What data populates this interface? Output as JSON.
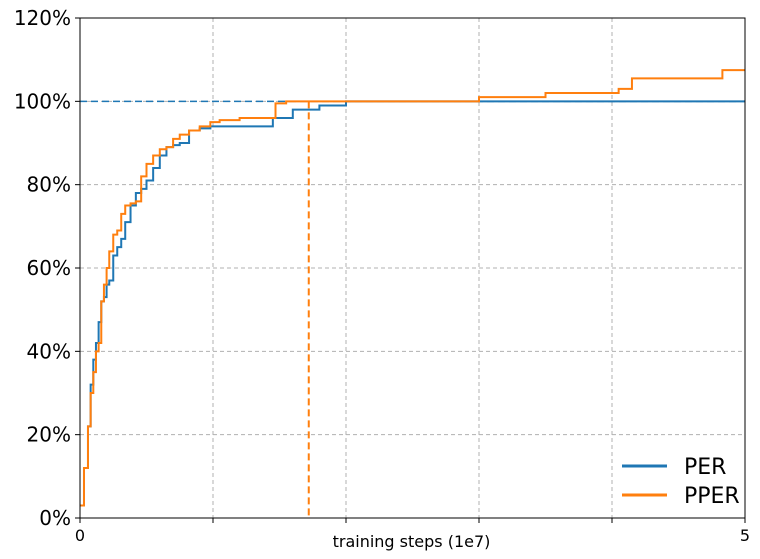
{
  "chart_data": {
    "type": "line",
    "xlabel": "training steps (1e7)",
    "x_tick_labels": [
      "0",
      "",
      "",
      "",
      "",
      "5"
    ],
    "x_ticks": [
      0,
      1,
      2,
      3,
      4,
      5
    ],
    "xlim": [
      0,
      5
    ],
    "y_tick_labels": [
      "0%",
      "20%",
      "40%",
      "60%",
      "80%",
      "100%",
      "120%"
    ],
    "y_ticks": [
      0,
      20,
      40,
      60,
      80,
      100,
      120
    ],
    "ylim": [
      0,
      120
    ],
    "grid": true,
    "legend_position": "bottom-right",
    "reference_line": {
      "y": 100,
      "color": "#1f77b4",
      "style": "dashed"
    },
    "vertical_marker": {
      "x": 1.72,
      "y_top": 100,
      "color": "#ff7f0e",
      "style": "dashed"
    },
    "series": [
      {
        "name": "PER",
        "color": "#1f77b4",
        "x": [
          0,
          0.03,
          0.06,
          0.08,
          0.1,
          0.12,
          0.14,
          0.16,
          0.18,
          0.2,
          0.22,
          0.25,
          0.28,
          0.31,
          0.34,
          0.38,
          0.42,
          0.46,
          0.5,
          0.55,
          0.6,
          0.65,
          0.7,
          0.75,
          0.82,
          0.9,
          0.98,
          1.02,
          1.06,
          1.2,
          1.3,
          1.45,
          1.6,
          1.7,
          1.8,
          1.9,
          2.0,
          2.5,
          3.0,
          3.5,
          4.0,
          4.5,
          5.0
        ],
        "y": [
          3,
          12,
          22,
          32,
          38,
          42,
          47,
          52,
          53,
          56,
          57,
          63,
          65,
          67,
          71,
          75,
          78,
          79,
          81,
          84,
          87,
          89,
          89.5,
          90,
          93,
          93.5,
          94,
          94,
          94,
          94,
          94,
          96,
          98,
          98,
          99,
          99,
          100,
          100,
          100,
          100,
          100,
          100,
          100
        ]
      },
      {
        "name": "PPER",
        "color": "#ff7f0e",
        "x": [
          0,
          0.03,
          0.06,
          0.08,
          0.1,
          0.12,
          0.14,
          0.16,
          0.18,
          0.2,
          0.22,
          0.25,
          0.28,
          0.31,
          0.34,
          0.38,
          0.42,
          0.46,
          0.5,
          0.55,
          0.6,
          0.65,
          0.7,
          0.75,
          0.82,
          0.9,
          0.98,
          1.05,
          1.2,
          1.4,
          1.47,
          1.55,
          1.72,
          2.0,
          2.5,
          3.0,
          3.5,
          4.0,
          4.05,
          4.15,
          4.5,
          4.7,
          4.83,
          5.0
        ],
        "y": [
          3,
          12,
          22,
          30,
          35,
          40,
          42,
          52,
          56,
          60,
          64,
          68,
          69,
          73,
          75,
          75.5,
          76,
          82,
          85,
          87,
          88.5,
          89,
          91,
          92,
          93,
          94,
          95,
          95.5,
          96,
          96,
          99.5,
          100,
          100,
          100,
          100,
          101,
          102,
          102,
          103,
          105.5,
          105.5,
          105.5,
          107.5,
          107.5
        ]
      }
    ]
  }
}
